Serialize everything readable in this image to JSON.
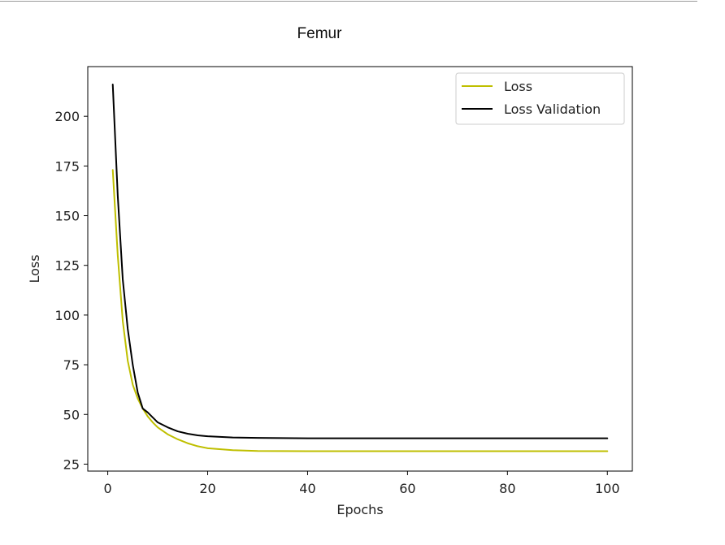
{
  "page": {
    "title": "Femur"
  },
  "chart_data": {
    "type": "line",
    "title": "",
    "xlabel": "Epochs",
    "ylabel": "Loss",
    "xlim": [
      -4,
      105
    ],
    "ylim": [
      21.5,
      225
    ],
    "xticks": [
      0,
      20,
      40,
      60,
      80,
      100
    ],
    "yticks": [
      25,
      50,
      75,
      100,
      125,
      150,
      175,
      200
    ],
    "grid": false,
    "legend_position": "top-right",
    "series": [
      {
        "name": "Loss",
        "color": "#bfbf00",
        "x": [
          1,
          2,
          3,
          4,
          5,
          6,
          7,
          8,
          9,
          10,
          12,
          14,
          16,
          18,
          20,
          25,
          30,
          40,
          50,
          60,
          70,
          80,
          90,
          100
        ],
        "y": [
          173,
          130,
          97,
          77,
          65,
          58,
          53,
          49,
          46,
          43.5,
          40,
          37.5,
          35.5,
          34,
          33,
          32,
          31.6,
          31.5,
          31.5,
          31.5,
          31.5,
          31.5,
          31.5,
          31.5
        ]
      },
      {
        "name": "Loss Validation",
        "color": "#000000",
        "x": [
          1,
          2,
          3,
          4,
          5,
          6,
          7,
          8,
          9,
          10,
          12,
          14,
          16,
          18,
          20,
          25,
          30,
          40,
          50,
          60,
          70,
          80,
          90,
          100
        ],
        "y": [
          216,
          160,
          118,
          93,
          75,
          61,
          53,
          51,
          48.5,
          46,
          43.5,
          41.5,
          40.3,
          39.5,
          39,
          38.4,
          38.2,
          38,
          38,
          38,
          38,
          38,
          38,
          38
        ]
      }
    ]
  }
}
